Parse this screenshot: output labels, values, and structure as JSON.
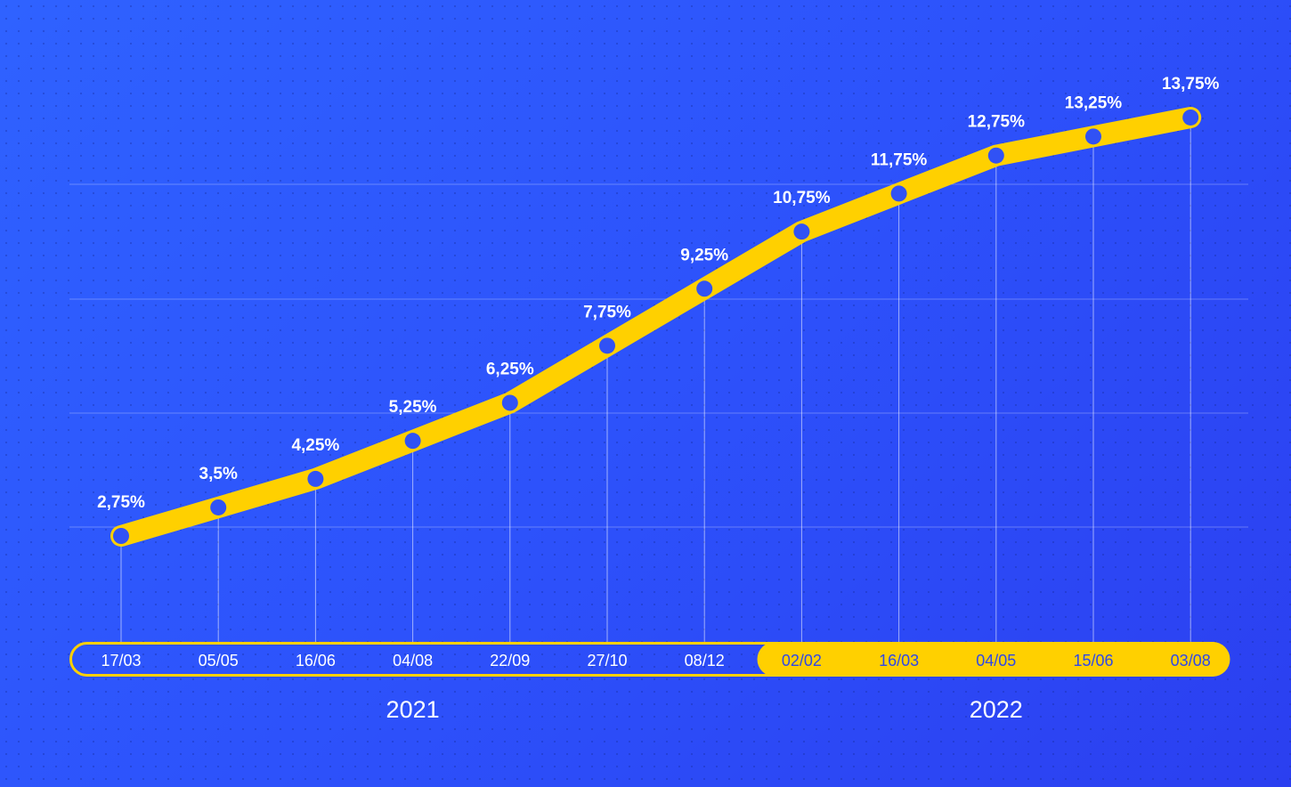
{
  "chart_data": {
    "type": "line",
    "title": "",
    "xlabel": "",
    "ylabel": "",
    "categories": [
      "17/03",
      "05/05",
      "16/06",
      "04/08",
      "22/09",
      "27/10",
      "08/12",
      "02/02",
      "16/03",
      "04/05",
      "15/06",
      "03/08"
    ],
    "values": [
      2.75,
      3.5,
      4.25,
      5.25,
      6.25,
      7.75,
      9.25,
      10.75,
      11.75,
      12.75,
      13.25,
      13.75
    ],
    "data_labels": [
      "2,75%",
      "3,5%",
      "4,25%",
      "5,25%",
      "6,25%",
      "7,75%",
      "9,25%",
      "10,75%",
      "11,75%",
      "12,75%",
      "13,25%",
      "13,75%"
    ],
    "years": [
      {
        "label": "2021",
        "first": 0,
        "last": 6
      },
      {
        "label": "2022",
        "first": 7,
        "last": 11
      }
    ],
    "ylim": [
      0,
      16
    ],
    "grid": true,
    "colors": {
      "line": "#ffd000",
      "marker": "#3152f5",
      "text": "#ffffff",
      "axis_text_2022": "#2f48e8"
    }
  }
}
